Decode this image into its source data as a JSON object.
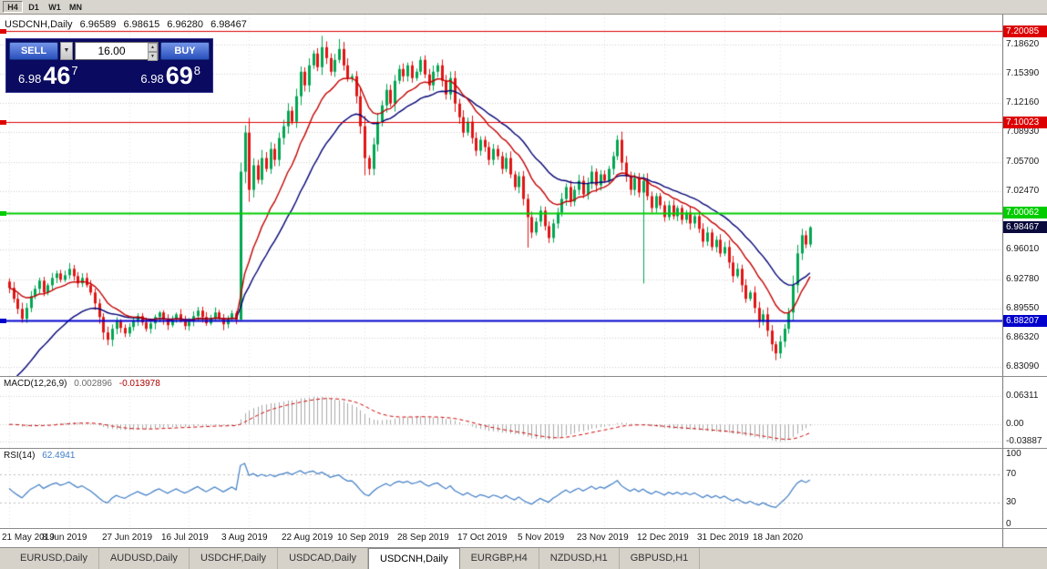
{
  "toolbar": {
    "timeframes": [
      {
        "label": "H4",
        "active": true
      },
      {
        "label": "D1",
        "active": false
      },
      {
        "label": "W1",
        "active": false
      },
      {
        "label": "MN",
        "active": false
      }
    ]
  },
  "tabs": [
    {
      "label": "EURUSD,Daily",
      "active": false
    },
    {
      "label": "AUDUSD,Daily",
      "active": false
    },
    {
      "label": "USDCHF,Daily",
      "active": false
    },
    {
      "label": "USDCAD,Daily",
      "active": false
    },
    {
      "label": "USDCNH,Daily",
      "active": true
    },
    {
      "label": "EURGBP,H4",
      "active": false
    },
    {
      "label": "NZDUSD,H1",
      "active": false
    },
    {
      "label": "GBPUSD,H1",
      "active": false
    }
  ],
  "chart": {
    "title": "USDCNH,Daily",
    "ohlc": {
      "open": "6.96589",
      "high": "6.98615",
      "low": "6.96280",
      "close": "6.98467"
    },
    "trade": {
      "sell_label": "SELL",
      "buy_label": "BUY",
      "volume": "16.00",
      "sell_big": "6.98",
      "sell_pips": "46",
      "sell_sup": "7",
      "buy_big": "6.98",
      "buy_pips": "69",
      "buy_sup": "8",
      "icons": {
        "dropdown": "▼",
        "spin_up": "▲",
        "spin_down": "▼"
      }
    },
    "price_axis": {
      "top": 7.2189,
      "bottom": 6.8211,
      "ticks": [
        {
          "value": 7.1862,
          "label": "7.18620"
        },
        {
          "value": 7.1539,
          "label": "7.15390"
        },
        {
          "value": 7.1216,
          "label": "7.12160"
        },
        {
          "value": 7.0893,
          "label": "7.08930"
        },
        {
          "value": 7.057,
          "label": "7.05700"
        },
        {
          "value": 7.0247,
          "label": "7.02470"
        },
        {
          "value": 6.9924,
          "label": "6.99240"
        },
        {
          "value": 6.9601,
          "label": "6.96010"
        },
        {
          "value": 6.9278,
          "label": "6.92780"
        },
        {
          "value": 6.8955,
          "label": "6.89550"
        },
        {
          "value": 6.8632,
          "label": "6.86320"
        },
        {
          "value": 6.8309,
          "label": "6.83090"
        }
      ]
    },
    "hlines": [
      {
        "price": 7.20085,
        "label": "7.20085",
        "color": "#dd0000",
        "width": 1
      },
      {
        "price": 7.10023,
        "label": "7.10023",
        "color": "#dd0000",
        "width": 1
      },
      {
        "price": 7.00062,
        "label": "7.00062",
        "color": "#00cc00",
        "width": 2
      },
      {
        "price": 6.88207,
        "label": "6.88207",
        "color": "#0000cc",
        "width": 2
      }
    ],
    "current_price": {
      "value": 6.98467,
      "label": "6.98467",
      "bg": "#0a0a3c"
    },
    "candles": {
      "first_open": 6.925,
      "up_color": "#00a651",
      "down_color": "#e01515",
      "closes": [
        6.918,
        6.906,
        6.895,
        6.884,
        6.896,
        6.909,
        6.917,
        6.926,
        6.913,
        6.921,
        6.929,
        6.934,
        6.927,
        6.932,
        6.939,
        6.931,
        6.923,
        6.929,
        6.921,
        6.913,
        6.901,
        6.886,
        6.869,
        6.861,
        6.873,
        6.881,
        6.874,
        6.868,
        6.875,
        6.881,
        6.887,
        6.88,
        6.873,
        6.879,
        6.886,
        6.891,
        6.884,
        6.877,
        6.883,
        6.889,
        6.882,
        6.876,
        6.881,
        6.887,
        6.893,
        6.886,
        6.879,
        6.885,
        6.891,
        6.885,
        6.878,
        6.884,
        6.89,
        6.883,
        7.046,
        7.089,
        7.026,
        7.053,
        7.037,
        7.061,
        7.049,
        7.071,
        7.059,
        7.083,
        7.096,
        7.113,
        7.101,
        7.129,
        7.156,
        7.141,
        7.163,
        7.176,
        7.161,
        7.183,
        7.171,
        7.156,
        7.169,
        7.181,
        7.163,
        7.149,
        7.151,
        7.129,
        7.096,
        7.061,
        7.049,
        7.076,
        7.101,
        7.119,
        7.136,
        7.121,
        7.146,
        7.159,
        7.151,
        7.163,
        7.149,
        7.156,
        7.169,
        7.153,
        7.141,
        7.156,
        7.163,
        7.146,
        7.131,
        7.149,
        7.121,
        7.106,
        7.089,
        7.101,
        7.083,
        7.069,
        7.081,
        7.073,
        7.059,
        7.071,
        7.063,
        7.049,
        7.061,
        7.043,
        7.029,
        7.041,
        7.016,
        6.996,
        6.979,
        6.991,
        7.003,
        6.986,
        6.973,
        6.989,
        7.001,
        7.016,
        7.029,
        7.013,
        7.026,
        7.036,
        7.021,
        7.033,
        7.046,
        7.031,
        7.043,
        7.036,
        7.049,
        7.063,
        7.081,
        7.056,
        7.041,
        7.026,
        7.039,
        7.023,
        7.036,
        7.019,
        7.006,
        7.019,
        7.009,
        6.996,
        7.009,
        6.997,
        7.006,
        6.993,
        7.001,
        6.989,
        6.997,
        6.983,
        6.969,
        6.979,
        6.963,
        6.971,
        6.956,
        6.963,
        6.946,
        6.931,
        6.939,
        6.921,
        6.906,
        6.913,
        6.896,
        6.881,
        6.889,
        6.871,
        6.856,
        6.846,
        6.859,
        6.873,
        6.891,
        6.921,
        6.956,
        6.976,
        6.96589,
        6.98467
      ],
      "wick_overrides": {
        "23": {
          "low": 6.855
        },
        "54": {
          "low": 6.884,
          "high": 7.056
        },
        "55": {
          "high": 7.097
        },
        "73": {
          "high": 7.1955
        },
        "77": {
          "high": 7.192
        },
        "83": {
          "low": 7.042
        },
        "121": {
          "low": 6.9625
        },
        "142": {
          "high": 7.086
        },
        "148": {
          "low": 6.923
        },
        "179": {
          "low": 6.8385
        },
        "187": {
          "high": 6.98615,
          "low": 6.9628
        }
      }
    },
    "mas": [
      {
        "period": 26,
        "color": "#000075",
        "seed": 6.8
      },
      {
        "period": 13,
        "color": "#c40000",
        "seed": null
      }
    ],
    "date_axis": {
      "labels": [
        {
          "text": "21 May 2019",
          "index": 0
        },
        {
          "text": "8 Jun 2019",
          "index": 14
        },
        {
          "text": "27 Jun 2019",
          "index": 28
        },
        {
          "text": "16 Jul 2019",
          "index": 42
        },
        {
          "text": "3 Aug 2019",
          "index": 56
        },
        {
          "text": "22 Aug 2019",
          "index": 70
        },
        {
          "text": "10 Sep 2019",
          "index": 83
        },
        {
          "text": "28 Sep 2019",
          "index": 97
        },
        {
          "text": "17 Oct 2019",
          "index": 111
        },
        {
          "text": "5 Nov 2019",
          "index": 125
        },
        {
          "text": "23 Nov 2019",
          "index": 139
        },
        {
          "text": "12 Dec 2019",
          "index": 153
        },
        {
          "text": "31 Dec 2019",
          "index": 167
        },
        {
          "text": "18 Jan 2020",
          "index": 180
        }
      ]
    }
  },
  "macd": {
    "name": "MACD(12,26,9)",
    "value_main": "0.002896",
    "value_signal": "-0.013978",
    "fast": 12,
    "slow": 26,
    "signal": 9,
    "hist_color": "#a8a8a8",
    "signal_color": "#cc0000",
    "range_top": 0.105,
    "range_bottom": -0.052,
    "axis_labels": [
      {
        "value": 0.06311,
        "label": "0.06311"
      },
      {
        "value": 0,
        "label": "0.00"
      },
      {
        "value": -0.03887,
        "label": "-0.03887"
      }
    ]
  },
  "rsi": {
    "name": "RSI(14)",
    "value": "62.4941",
    "period": 14,
    "color": "#3f7cc4",
    "levels": [
      70,
      30
    ],
    "range_top": 105,
    "range_bottom": -5,
    "axis_labels": [
      {
        "value": 100,
        "label": "100"
      },
      {
        "value": 70,
        "label": "70"
      },
      {
        "value": 30,
        "label": "30"
      },
      {
        "value": 0,
        "label": "0"
      }
    ]
  }
}
